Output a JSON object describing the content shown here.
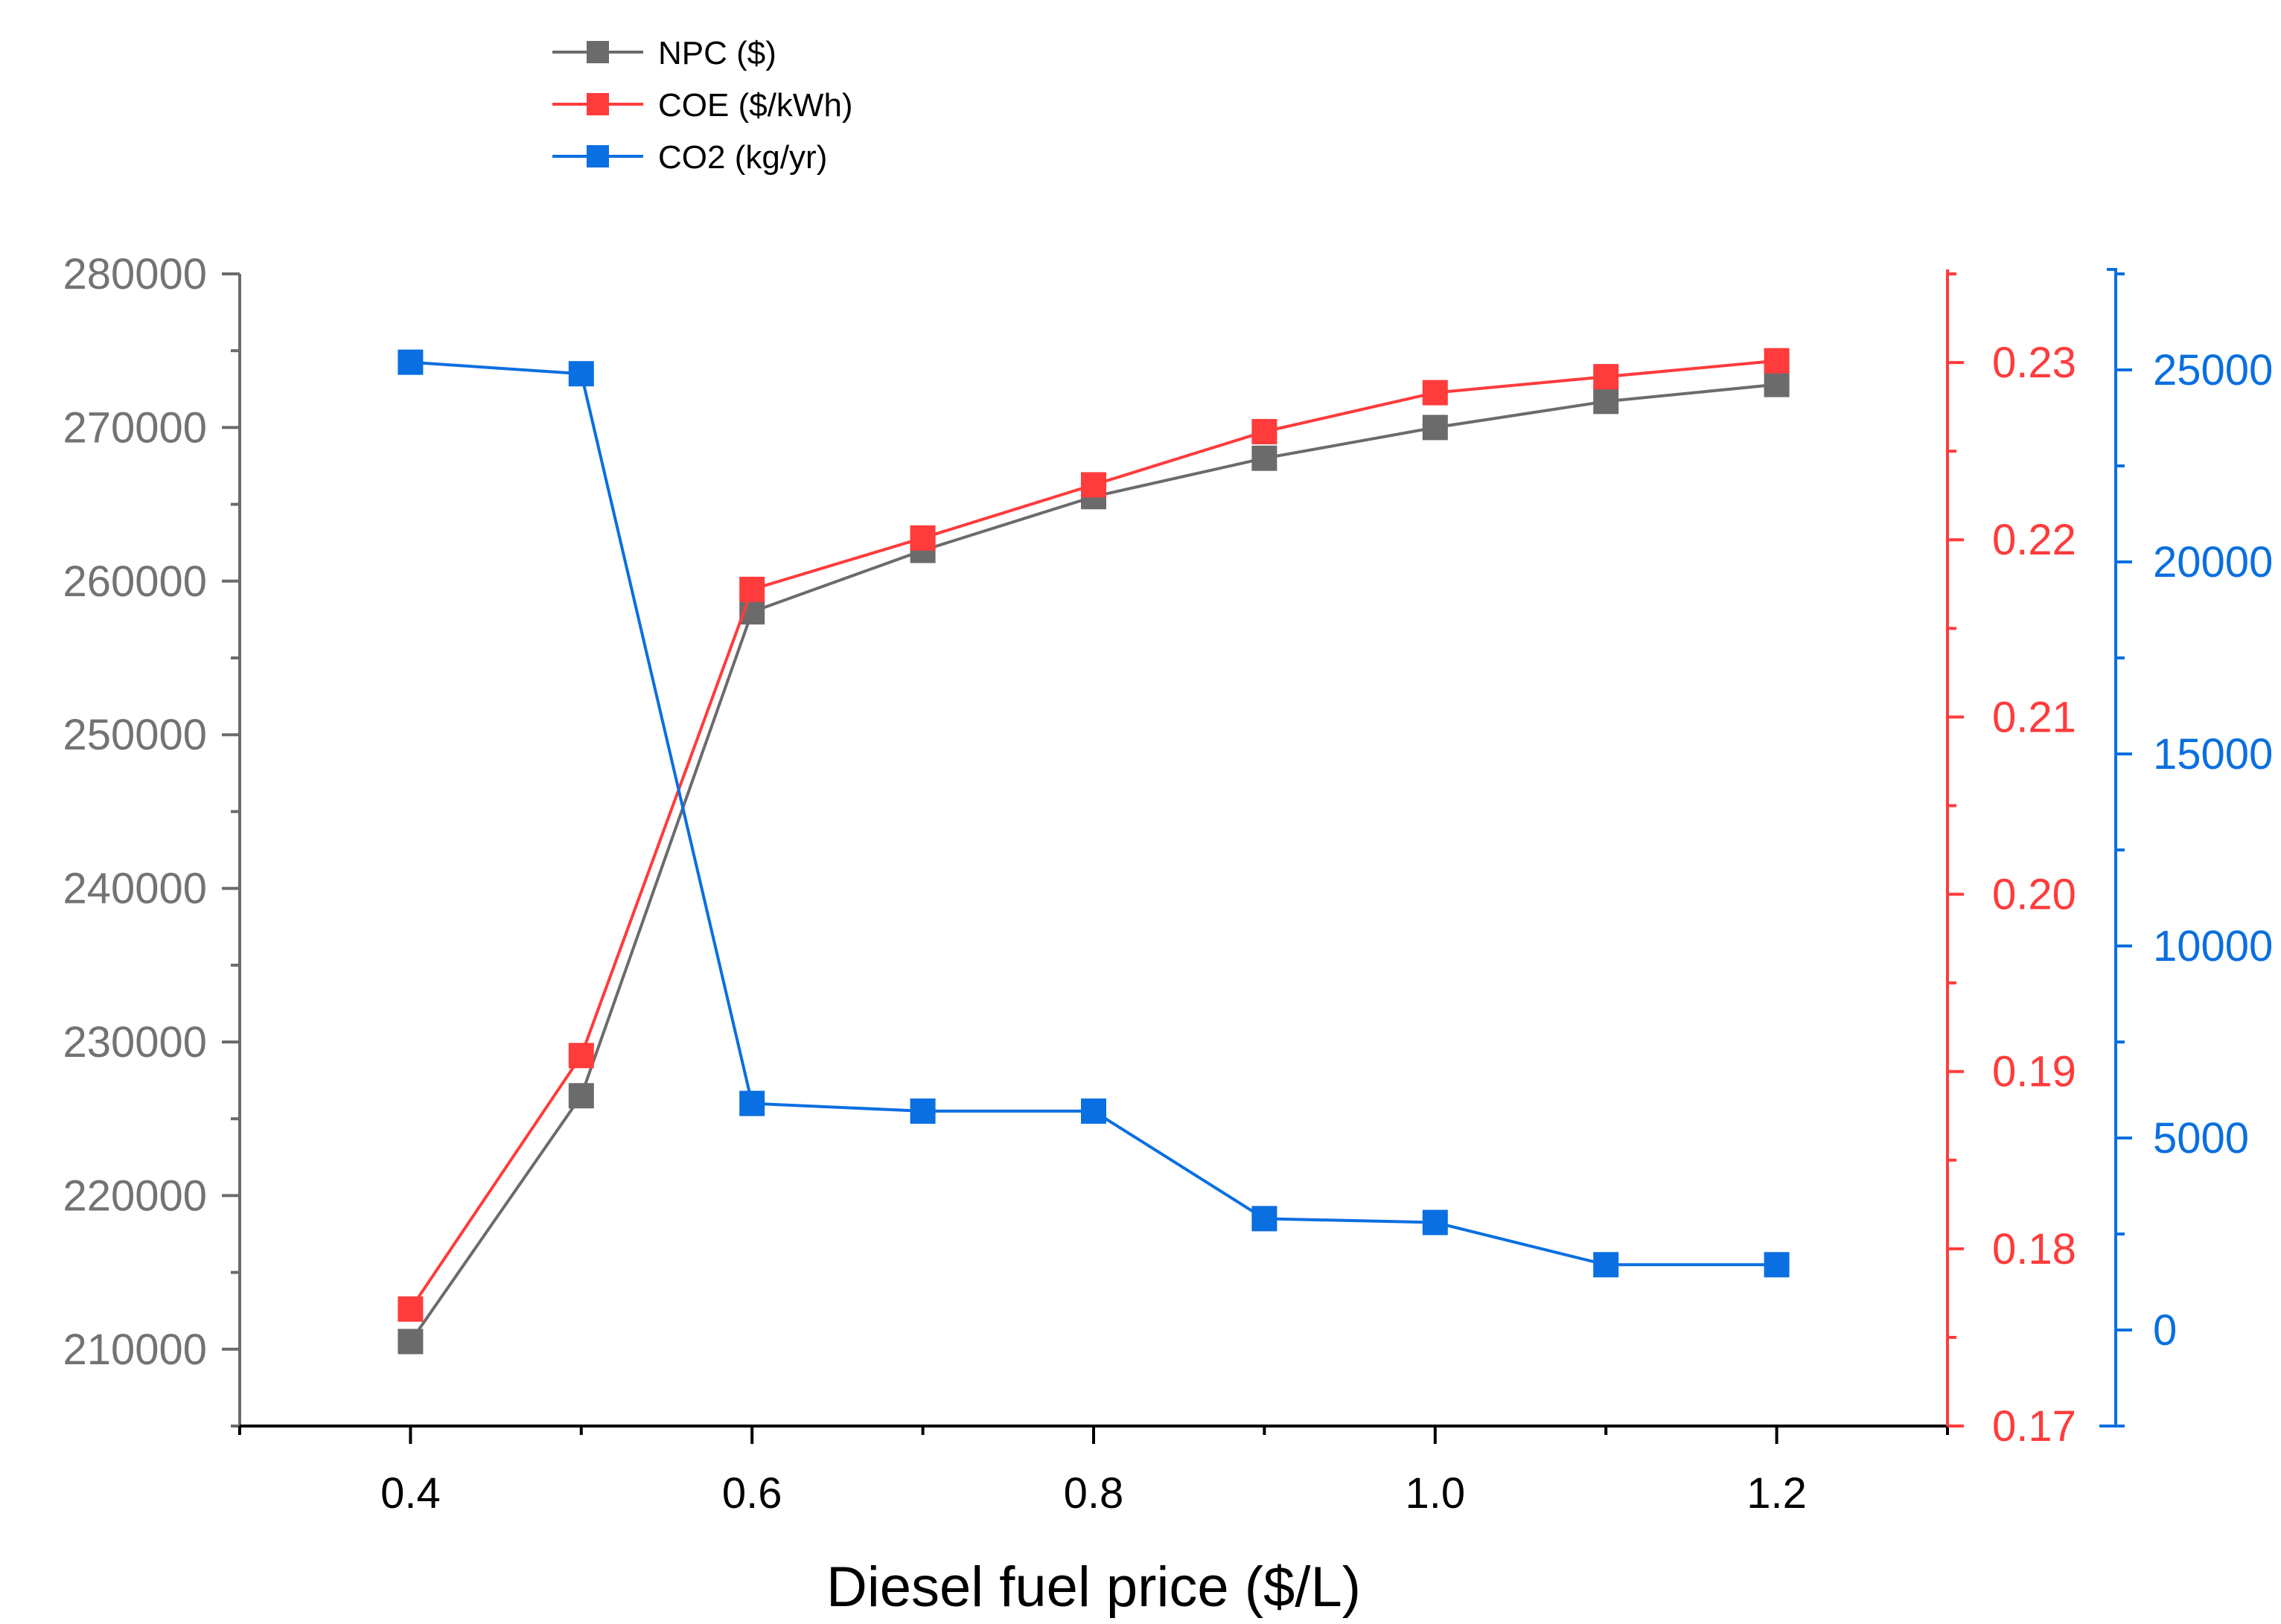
{
  "chart_data": {
    "type": "line",
    "xlabel": "Diesel fuel price ($/L)",
    "x": [
      0.4,
      0.5,
      0.6,
      0.7,
      0.8,
      0.9,
      1.0,
      1.1,
      1.2
    ],
    "xlim": [
      0.3,
      1.3
    ],
    "x_ticks": [
      0.4,
      0.6,
      0.8,
      1.0,
      1.2
    ],
    "x_tick_labels": [
      "0.4",
      "0.6",
      "0.8",
      "1.0",
      "1.2"
    ],
    "series": [
      {
        "name": "NPC ($)",
        "axis": "left",
        "color": "#6b6b6b",
        "values": [
          210500,
          226500,
          258000,
          262000,
          265500,
          268000,
          270000,
          271700,
          272800
        ]
      },
      {
        "name": "COE ($/kWh)",
        "axis": "right1",
        "color": "#ff3b3b",
        "values": [
          0.1766,
          0.1909,
          0.2172,
          0.2201,
          0.2231,
          0.2261,
          0.2283,
          0.2292,
          0.2301
        ]
      },
      {
        "name": "CO2 (kg/yr)",
        "axis": "right2",
        "color": "#0a6fe0",
        "values": [
          25200,
          24900,
          5900,
          5700,
          5700,
          2900,
          2800,
          1700,
          1700
        ]
      }
    ],
    "axes": {
      "left": {
        "ylim": [
          205000,
          280000
        ],
        "ticks": [
          210000,
          220000,
          230000,
          240000,
          250000,
          260000,
          270000,
          280000
        ],
        "tick_labels": [
          "210000",
          "220000",
          "230000",
          "240000",
          "250000",
          "260000",
          "270000",
          "280000"
        ],
        "color": "#6b6b6b"
      },
      "right1": {
        "ylim": [
          0.17,
          0.235
        ],
        "ticks": [
          0.17,
          0.18,
          0.19,
          0.2,
          0.21,
          0.22,
          0.23
        ],
        "tick_labels": [
          "0.17",
          "0.18",
          "0.19",
          "0.20",
          "0.21",
          "0.22",
          "0.23"
        ],
        "color": "#ff3b3b"
      },
      "right2": {
        "ylim": [
          -2500,
          27500
        ],
        "ticks": [
          0,
          5000,
          10000,
          15000,
          20000,
          25000
        ],
        "tick_labels": [
          "0",
          "5000",
          "10000",
          "15000",
          "20000",
          "25000"
        ],
        "color": "#0a6fe0"
      }
    },
    "legend": {
      "position": "top-left",
      "entries": [
        "NPC ($)",
        "COE ($/kWh)",
        "CO2 (kg/yr)"
      ]
    }
  }
}
